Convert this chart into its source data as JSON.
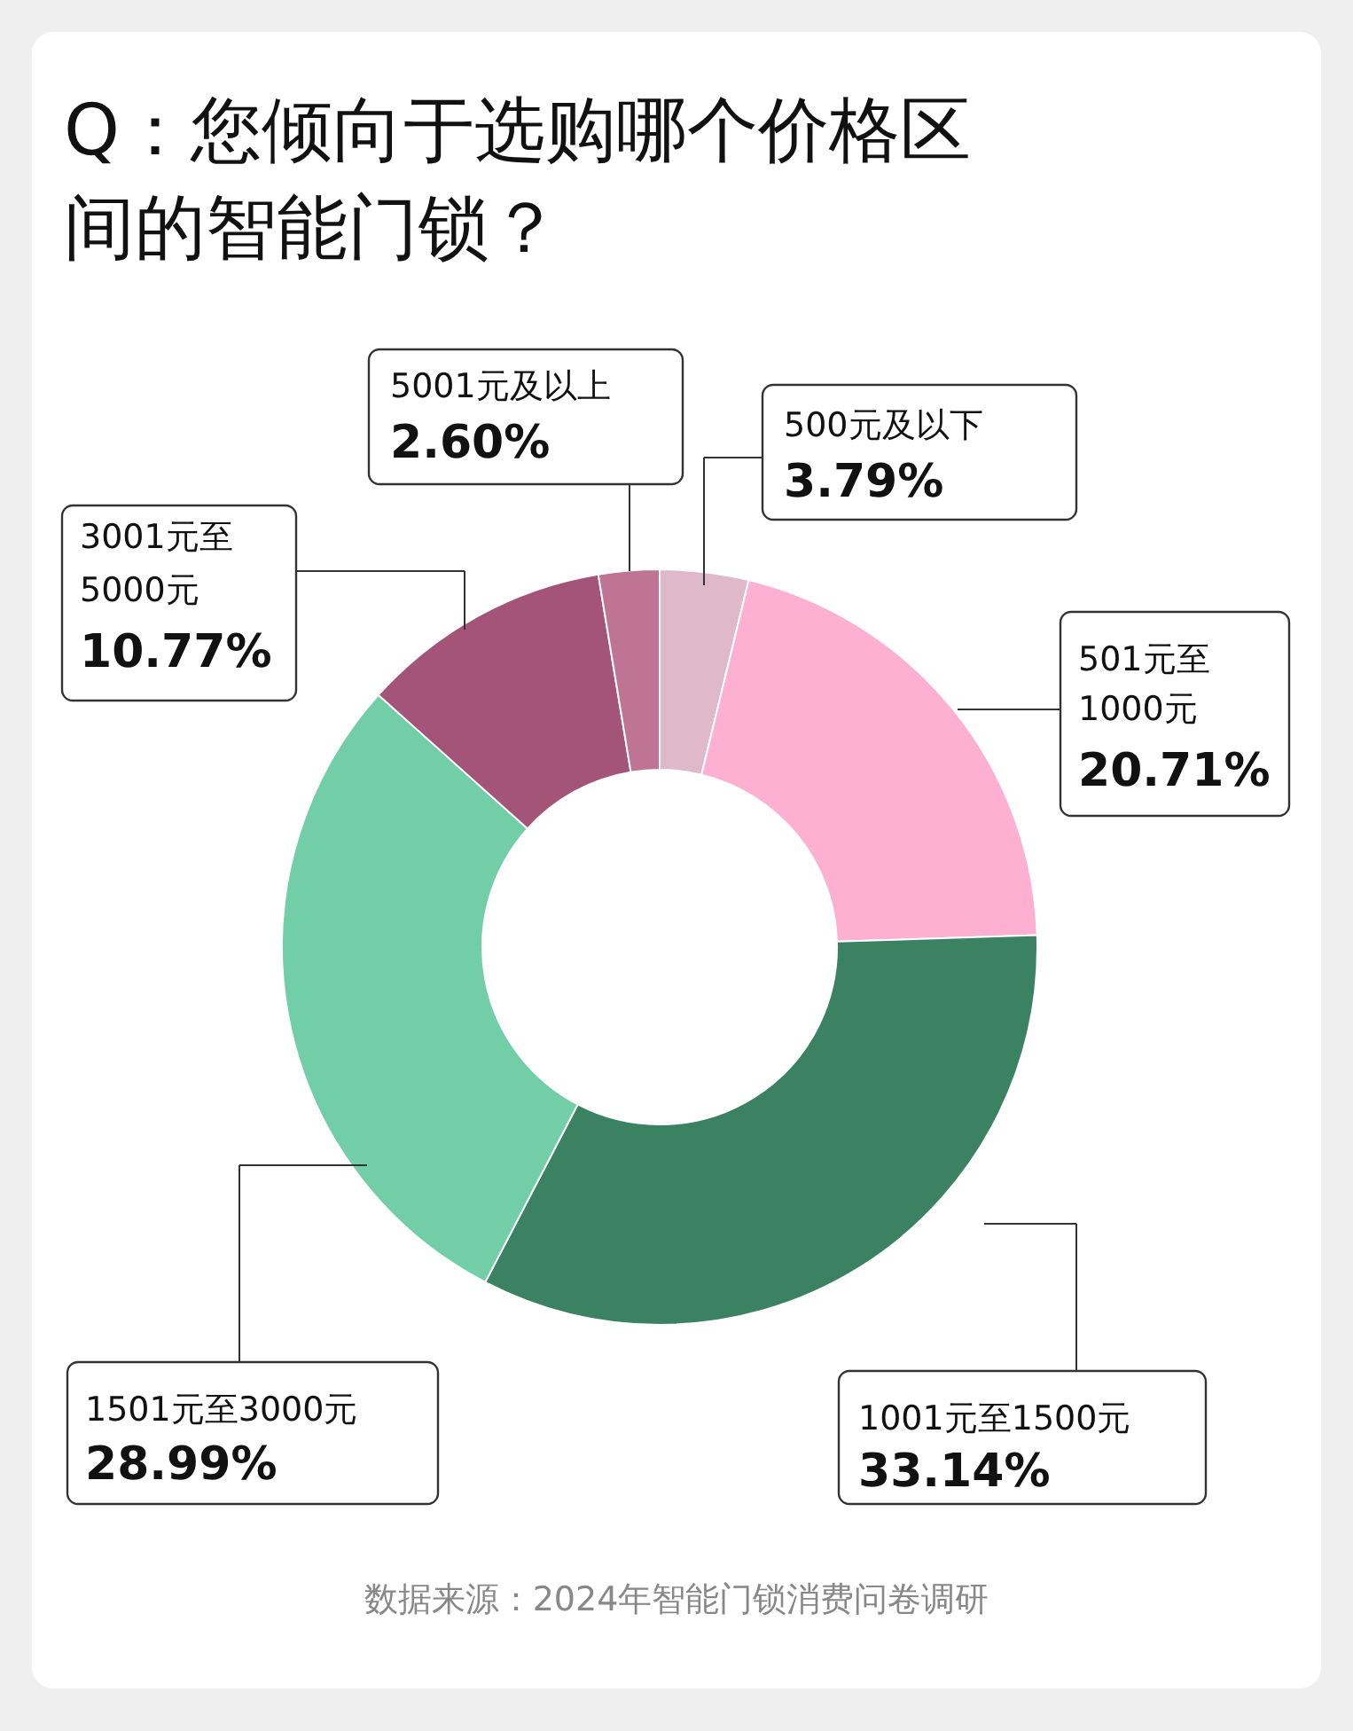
{
  "chart_data": {
    "type": "donut",
    "title": "Q：您倾向于选购哪个价格区间的智能门锁？",
    "categories": [
      "500元及以下",
      "501元至1000元",
      "1001元至1500元",
      "1501元至3000元",
      "3001元至5000元",
      "5001元及以上"
    ],
    "values": [
      3.79,
      20.71,
      33.14,
      28.99,
      10.77,
      2.6
    ],
    "value_labels": [
      "3.79%",
      "20.71%",
      "33.14%",
      "28.99%",
      "10.77%",
      "2.60%"
    ],
    "colors": [
      "#dfb9ca",
      "#fdb0d2",
      "#3b8262",
      "#72cea6",
      "#a45479",
      "#bf7494"
    ],
    "annotations": [
      "数据来源：2024年智能门锁消费问卷调研"
    ]
  }
}
